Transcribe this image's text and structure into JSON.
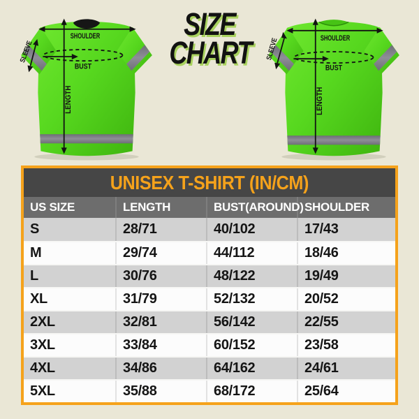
{
  "page_title": {
    "line1": "SIZE",
    "line2": "CHART"
  },
  "shirt_labels": {
    "shoulder": "SHOULDER",
    "bust": "BUST",
    "length": "LENGTH",
    "sleeve": "SLEEVE"
  },
  "colors": {
    "background": "#EAE7D6",
    "accent_orange": "#F5A21B",
    "table_title_bg": "#464646",
    "table_header_bg": "#6D6D6D",
    "row_gray": "#D2D2D2",
    "row_white": "#FCFCFC",
    "cell_text": "#151515",
    "shirt_green": "#55D71E",
    "stripe_gray": "#7B7B84",
    "title_shadow_green": "#A9D25F"
  },
  "chart_data": {
    "type": "table",
    "title": "UNISEX T-SHIRT (IN/CM)",
    "columns": [
      "US SIZE",
      "LENGTH",
      "BUST(AROUND)",
      "SHOULDER"
    ],
    "rows": [
      [
        "S",
        "28/71",
        "40/102",
        "17/43"
      ],
      [
        "M",
        "29/74",
        "44/112",
        "18/46"
      ],
      [
        "L",
        "30/76",
        "48/122",
        "19/49"
      ],
      [
        "XL",
        "31/79",
        "52/132",
        "20/52"
      ],
      [
        "2XL",
        "32/81",
        "56/142",
        "22/55"
      ],
      [
        "3XL",
        "33/84",
        "60/152",
        "23/58"
      ],
      [
        "4XL",
        "34/86",
        "64/162",
        "24/61"
      ],
      [
        "5XL",
        "35/88",
        "68/172",
        "25/64"
      ]
    ]
  }
}
